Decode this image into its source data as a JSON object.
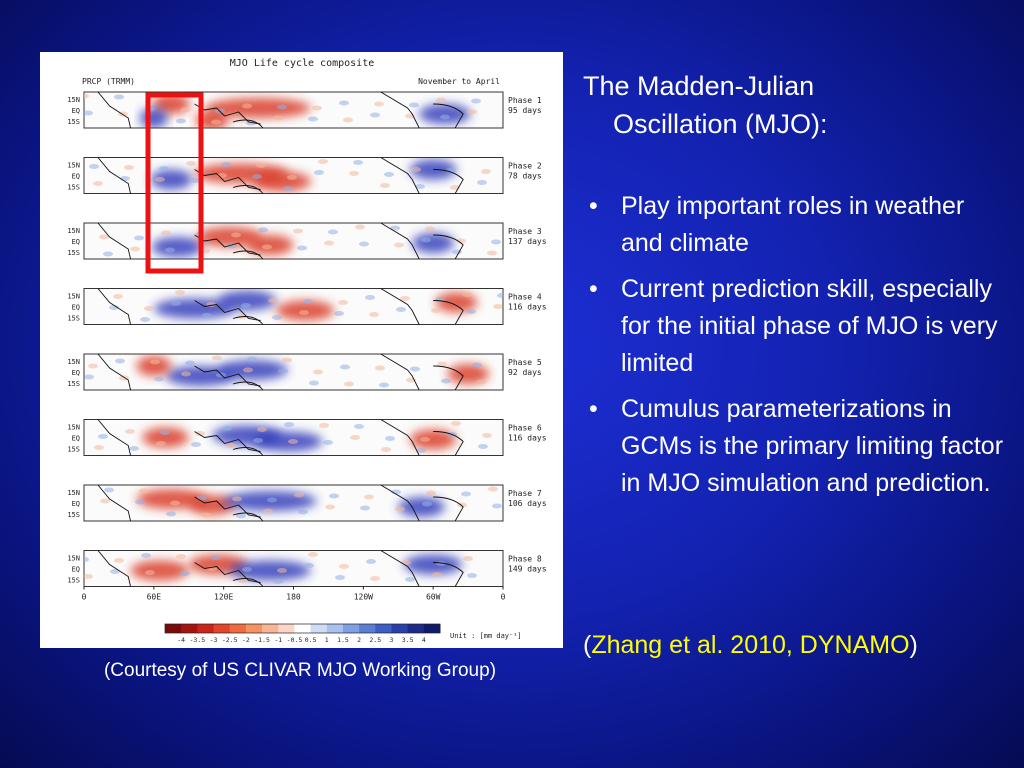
{
  "slide": {
    "title_line1": "The Madden-Julian",
    "title_line2": "Oscillation (MJO):",
    "bullets": [
      "Play important roles in weather and climate",
      "Current prediction skill, especially for the initial phase of MJO is very limited",
      "Cumulus parameterizations in GCMs is the primary limiting factor in MJO simulation and prediction."
    ],
    "bullet_symbol": "•",
    "citation": {
      "open_paren": "(",
      "ref": "Zhang et al. 2010, DYNAMO",
      "close_paren": ")"
    },
    "caption": "(Courtesy of US CLIVAR MJO Working Group)"
  },
  "figure": {
    "title": "MJO Life cycle composite",
    "left_label": "PRCP (TRMM)",
    "right_label": "November to April",
    "lat_labels": [
      "15N",
      "EQ",
      "15S"
    ],
    "lon_labels": [
      "0",
      "60E",
      "120E",
      "180",
      "120W",
      "60W",
      "0"
    ],
    "panels": [
      {
        "phase": "Phase 1",
        "days": "95 days"
      },
      {
        "phase": "Phase 2",
        "days": "78 days"
      },
      {
        "phase": "Phase 3",
        "days": "137 days"
      },
      {
        "phase": "Phase 4",
        "days": "116 days"
      },
      {
        "phase": "Phase 5",
        "days": "92 days"
      },
      {
        "phase": "Phase 6",
        "days": "116 days"
      },
      {
        "phase": "Phase 7",
        "days": "106 days"
      },
      {
        "phase": "Phase 8",
        "days": "149 days"
      }
    ],
    "colorbar_ticks": [
      "-4",
      "-3.5",
      "-3",
      "-2.5",
      "-2",
      "-1.5",
      "-1",
      "-0.5",
      "0.5",
      "1",
      "1.5",
      "2",
      "2.5",
      "3",
      "3.5",
      "4"
    ],
    "colorbar_unit": "Unit : [mm day⁻¹]",
    "colors": {
      "wet": "#2a35b8",
      "dry": "#d8321a",
      "highlight_box": "#ee1111"
    }
  }
}
